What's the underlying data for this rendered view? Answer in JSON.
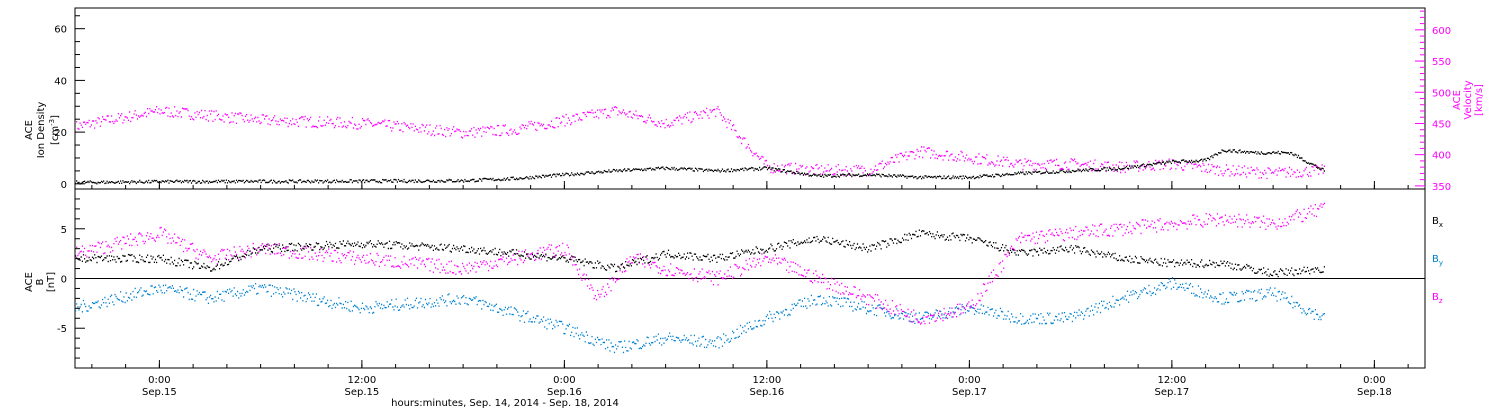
{
  "chart_data": [
    {
      "type": "scatter",
      "panel": "top",
      "x_axis": {
        "range": [
          "2014-09-14T19:00",
          "2014-09-18T03:00"
        ],
        "major_ticks": [
          {
            "t": "2014-09-15T00:00",
            "time": "0:00",
            "date": "Sep.15"
          },
          {
            "t": "2014-09-15T12:00",
            "time": "12:00",
            "date": "Sep.15"
          },
          {
            "t": "2014-09-16T00:00",
            "time": "0:00",
            "date": "Sep.16"
          },
          {
            "t": "2014-09-16T12:00",
            "time": "12:00",
            "date": "Sep.16"
          },
          {
            "t": "2014-09-17T00:00",
            "time": "0:00",
            "date": "Sep.17"
          },
          {
            "t": "2014-09-17T12:00",
            "time": "12:00",
            "date": "Sep.17"
          },
          {
            "t": "2014-09-18T00:00",
            "time": "0:00",
            "date": "Sep.18"
          }
        ],
        "xlabel": "hours:minutes, Sep. 14, 2014 - Sep. 18, 2014"
      },
      "y_left": {
        "ylabel_lines": [
          "ACE",
          "Ion Density",
          "[cm",
          "-3",
          "]"
        ],
        "range": [
          -2,
          68
        ],
        "ticks": [
          0,
          20,
          40,
          60
        ],
        "color": "#000000"
      },
      "y_right": {
        "ylabel_lines": [
          "ACE",
          "Velocity",
          "[km/s]"
        ],
        "range": [
          345,
          635
        ],
        "ticks": [
          350,
          400,
          450,
          500,
          550,
          600
        ],
        "color": "#ff00ff"
      },
      "series": [
        {
          "axis": "left",
          "color": "#000000",
          "x": [
            "2014-09-14T19:00",
            "2014-09-15T00:00",
            "2014-09-15T06:00",
            "2014-09-15T12:00",
            "2014-09-15T18:00",
            "2014-09-15T21:00",
            "2014-09-16T00:00",
            "2014-09-16T03:00",
            "2014-09-16T06:00",
            "2014-09-16T09:00",
            "2014-09-16T12:00",
            "2014-09-16T15:00",
            "2014-09-16T18:00",
            "2014-09-16T21:00",
            "2014-09-17T00:00",
            "2014-09-17T03:00",
            "2014-09-17T06:00",
            "2014-09-17T09:00",
            "2014-09-17T12:00",
            "2014-09-17T14:00",
            "2014-09-17T15:00",
            "2014-09-17T17:00",
            "2014-09-17T19:00",
            "2014-09-17T21:00"
          ],
          "y": [
            0.5,
            0.8,
            0.9,
            1.0,
            1.2,
            2.0,
            3.5,
            5.0,
            6.0,
            5.0,
            6.0,
            3.0,
            3.5,
            2.5,
            2.5,
            4.0,
            5.0,
            6.0,
            8.5,
            9.0,
            13.0,
            12.0,
            12.0,
            5.0
          ]
        },
        {
          "axis": "right",
          "color": "#ff00ff",
          "x": [
            "2014-09-14T19:00",
            "2014-09-15T00:00",
            "2014-09-15T06:00",
            "2014-09-15T12:00",
            "2014-09-15T18:00",
            "2014-09-15T21:00",
            "2014-09-16T00:00",
            "2014-09-16T03:00",
            "2014-09-16T06:00",
            "2014-09-16T09:00",
            "2014-09-16T11:00",
            "2014-09-16T12:00",
            "2014-09-16T15:00",
            "2014-09-16T18:00",
            "2014-09-16T21:00",
            "2014-09-17T00:00",
            "2014-09-17T03:00",
            "2014-09-17T06:00",
            "2014-09-17T09:00",
            "2014-09-17T12:00",
            "2014-09-17T15:00",
            "2014-09-17T18:00",
            "2014-09-17T21:00"
          ],
          "y": [
            445,
            470,
            455,
            450,
            435,
            440,
            455,
            470,
            450,
            470,
            410,
            380,
            375,
            375,
            405,
            395,
            385,
            385,
            380,
            385,
            375,
            370,
            375
          ]
        }
      ]
    },
    {
      "type": "scatter",
      "panel": "bottom",
      "y_left": {
        "ylabel_lines": [
          "ACE",
          "B",
          "[nT]"
        ],
        "range": [
          -9,
          9
        ],
        "ticks": [
          -5,
          0,
          5
        ],
        "color": "#000000"
      },
      "legend": [
        {
          "name": "B",
          "sub": "x",
          "color": "#000000"
        },
        {
          "name": "B",
          "sub": "y",
          "color": "#0080d0"
        },
        {
          "name": "B",
          "sub": "z",
          "color": "#ff00ff"
        }
      ],
      "series": [
        {
          "color": "#000000",
          "x": [
            "2014-09-14T19:00",
            "2014-09-15T00:00",
            "2014-09-15T03:00",
            "2014-09-15T06:00",
            "2014-09-15T12:00",
            "2014-09-15T18:00",
            "2014-09-16T00:00",
            "2014-09-16T03:00",
            "2014-09-16T06:00",
            "2014-09-16T09:00",
            "2014-09-16T12:00",
            "2014-09-16T15:00",
            "2014-09-16T18:00",
            "2014-09-16T21:00",
            "2014-09-17T00:00",
            "2014-09-17T03:00",
            "2014-09-17T06:00",
            "2014-09-17T09:00",
            "2014-09-17T12:00",
            "2014-09-17T15:00",
            "2014-09-17T18:00",
            "2014-09-17T21:00"
          ],
          "y": [
            2,
            2,
            1,
            3,
            3.5,
            3,
            2,
            1,
            2.5,
            2,
            3,
            4,
            3,
            4.5,
            4,
            2.5,
            3,
            2,
            1.5,
            1.5,
            0.5,
            1
          ]
        },
        {
          "color": "#0080d0",
          "x": [
            "2014-09-14T19:00",
            "2014-09-15T00:00",
            "2014-09-15T03:00",
            "2014-09-15T06:00",
            "2014-09-15T12:00",
            "2014-09-15T18:00",
            "2014-09-16T00:00",
            "2014-09-16T03:00",
            "2014-09-16T06:00",
            "2014-09-16T09:00",
            "2014-09-16T12:00",
            "2014-09-16T15:00",
            "2014-09-16T18:00",
            "2014-09-16T21:00",
            "2014-09-17T00:00",
            "2014-09-17T03:00",
            "2014-09-17T06:00",
            "2014-09-17T09:00",
            "2014-09-17T12:00",
            "2014-09-17T15:00",
            "2014-09-17T18:00",
            "2014-09-17T21:00"
          ],
          "y": [
            -3,
            -1,
            -2,
            -1,
            -3,
            -2,
            -5,
            -7,
            -6,
            -6.5,
            -4,
            -2,
            -3,
            -4,
            -3,
            -4,
            -4,
            -2,
            -0.5,
            -2,
            -1.5,
            -4
          ]
        },
        {
          "color": "#ff00ff",
          "x": [
            "2014-09-14T19:00",
            "2014-09-15T00:00",
            "2014-09-15T03:00",
            "2014-09-15T06:00",
            "2014-09-15T12:00",
            "2014-09-15T18:00",
            "2014-09-16T00:00",
            "2014-09-16T02:00",
            "2014-09-16T04:00",
            "2014-09-16T06:00",
            "2014-09-16T09:00",
            "2014-09-16T12:00",
            "2014-09-16T15:00",
            "2014-09-16T18:00",
            "2014-09-16T21:00",
            "2014-09-17T00:00",
            "2014-09-17T03:00",
            "2014-09-17T06:00",
            "2014-09-17T09:00",
            "2014-09-17T12:00",
            "2014-09-17T15:00",
            "2014-09-17T18:00",
            "2014-09-17T21:00"
          ],
          "y": [
            2.5,
            4.5,
            2,
            3,
            2,
            1,
            3,
            -2,
            2,
            1,
            0,
            2,
            0,
            -2,
            -4,
            -3,
            4,
            4.5,
            5,
            5.5,
            6,
            5.5,
            7
          ]
        }
      ]
    }
  ],
  "colors": {
    "black": "#000000",
    "velocity": "#ff00ff",
    "by": "#0080d0",
    "bz": "#ff00ff"
  }
}
